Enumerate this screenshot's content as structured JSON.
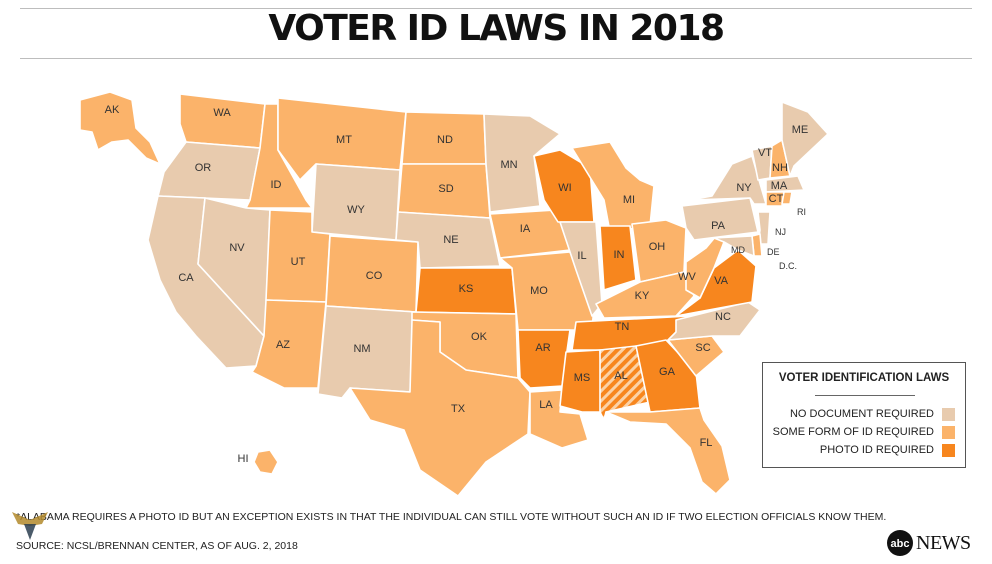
{
  "title": "VOTER ID LAWS IN 2018",
  "colors": {
    "none": "#e8cbae",
    "some": "#fbb36a",
    "photo": "#f7861e",
    "border": "#ffffff",
    "title": "#111111"
  },
  "states": {
    "AK": "some",
    "HI": "some",
    "WA": "some",
    "OR": "none",
    "CA": "none",
    "ID": "some",
    "NV": "none",
    "MT": "some",
    "WY": "none",
    "UT": "some",
    "AZ": "some",
    "CO": "some",
    "NM": "none",
    "ND": "some",
    "SD": "some",
    "NE": "none",
    "KS": "photo",
    "OK": "some",
    "TX": "some",
    "MN": "none",
    "IA": "some",
    "MO": "some",
    "AR": "photo",
    "LA": "some",
    "WI": "photo",
    "IL": "none",
    "MI": "some",
    "IN": "photo",
    "OH": "some",
    "KY": "some",
    "TN": "photo",
    "MS": "photo",
    "AL": "photo-exception",
    "GA": "photo",
    "FL": "some",
    "SC": "some",
    "NC": "none",
    "VA": "photo",
    "WV": "some",
    "PA": "none",
    "NY": "none",
    "VT": "none",
    "NH": "some",
    "ME": "none",
    "MA": "none",
    "CT": "some",
    "RI": "some",
    "NJ": "none",
    "DE": "some",
    "MD": "none",
    "DC": "none"
  },
  "state_labels": {
    "AK": "AK",
    "HI": "HI",
    "WA": "WA",
    "OR": "OR",
    "CA": "CA",
    "ID": "ID",
    "NV": "NV",
    "MT": "MT",
    "WY": "WY",
    "UT": "UT",
    "AZ": "AZ",
    "CO": "CO",
    "NM": "NM",
    "ND": "ND",
    "SD": "SD",
    "NE": "NE",
    "KS": "KS",
    "OK": "OK",
    "TX": "TX",
    "MN": "MN",
    "IA": "IA",
    "MO": "MO",
    "AR": "AR",
    "LA": "LA",
    "WI": "WI",
    "IL": "IL",
    "MI": "MI",
    "IN": "IN",
    "OH": "OH",
    "KY": "KY",
    "TN": "TN",
    "MS": "MS",
    "AL": "AL",
    "GA": "GA",
    "FL": "FL",
    "SC": "SC",
    "NC": "NC",
    "VA": "VA",
    "WV": "WV",
    "PA": "PA",
    "NY": "NY",
    "VT": "VT",
    "NH": "NH",
    "ME": "ME",
    "MA": "MA",
    "CT": "CT",
    "RI": "RI",
    "NJ": "NJ",
    "DE": "DE",
    "MD": "MD",
    "DC": "D.C."
  },
  "legend": {
    "title": "VOTER IDENTIFICATION LAWS",
    "items": [
      {
        "label": "NO DOCUMENT REQUIRED",
        "key": "none"
      },
      {
        "label": "SOME FORM OF ID REQUIRED",
        "key": "some"
      },
      {
        "label": "PHOTO ID REQUIRED",
        "key": "photo"
      }
    ]
  },
  "footnote": "*ALABAMA REQUIRES A PHOTO ID BUT AN EXCEPTION EXISTS IN THAT THE INDIVIDUAL CAN STILL VOTE WITHOUT SUCH AN ID IF TWO ELECTION OFFICIALS KNOW THEM.",
  "source": "SOURCE: NCSL/BRENNAN CENTER, AS OF AUG. 2, 2018",
  "brand": {
    "mark": "abc",
    "name": "NEWS",
    "logo_icon": "abc-news-logo-icon"
  },
  "watermark": {
    "icon": "eagle-emblem-icon"
  }
}
